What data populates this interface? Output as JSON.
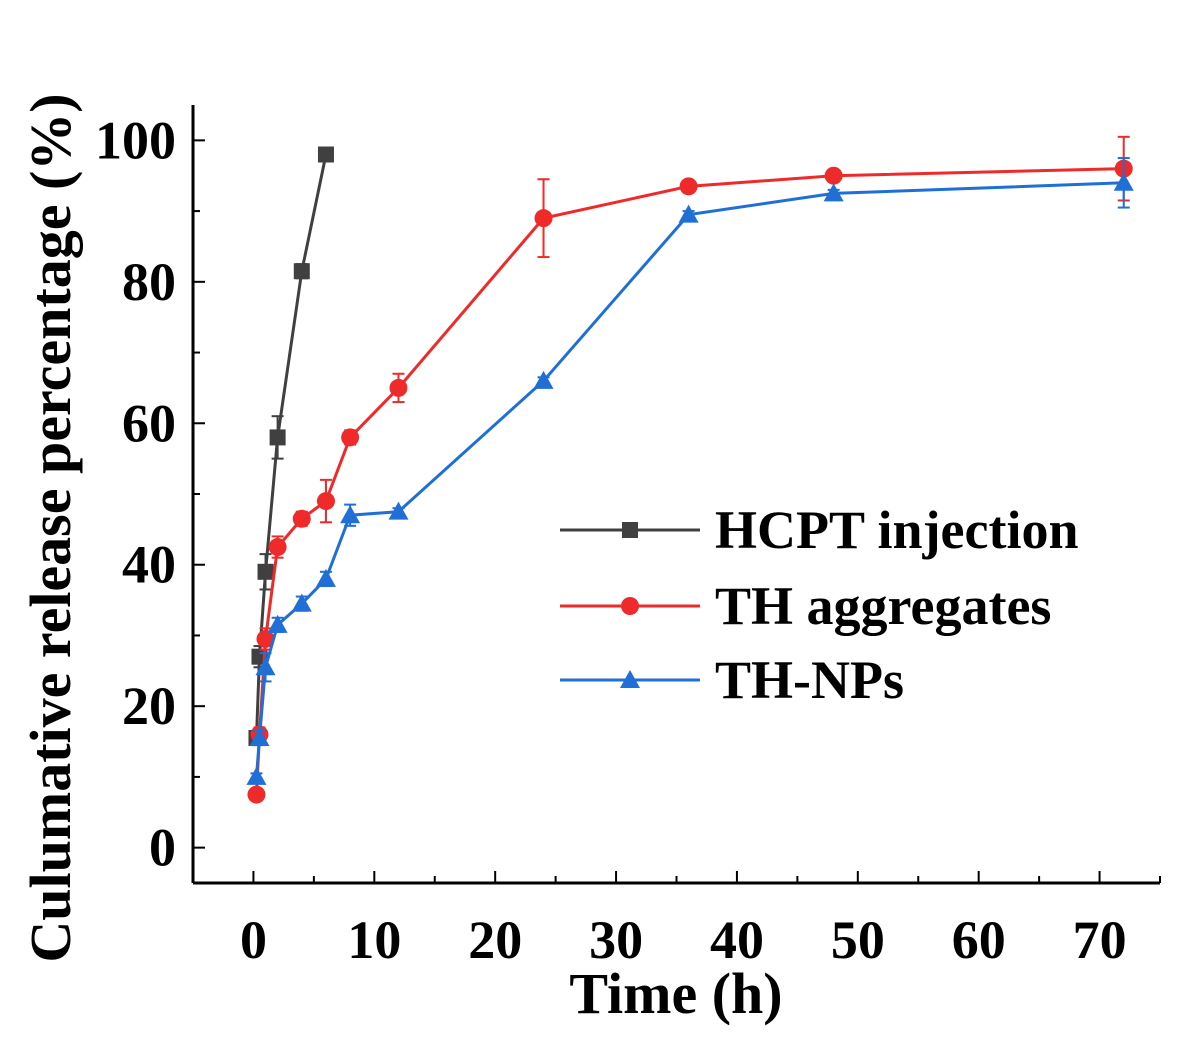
{
  "chart_data": {
    "type": "line",
    "title": "",
    "xlabel": "Time (h)",
    "ylabel": "Culumative release percentage (%)",
    "xlim": [
      -5,
      75
    ],
    "ylim": [
      -5,
      105
    ],
    "xticks": [
      0,
      10,
      20,
      30,
      40,
      50,
      60,
      70
    ],
    "yticks": [
      0,
      20,
      40,
      60,
      80,
      100
    ],
    "legend_position": "center-right",
    "grid": false,
    "series": [
      {
        "name": "HCPT injection",
        "color": "#404040",
        "marker": "square",
        "x": [
          0.25,
          0.5,
          1,
          2,
          4,
          6
        ],
        "y": [
          15.5,
          27,
          39,
          58,
          81.5,
          98
        ],
        "err": [
          1,
          1.5,
          2.5,
          3,
          1,
          0.5
        ]
      },
      {
        "name": "TH aggregates",
        "color": "#ee2a2a",
        "marker": "circle",
        "x": [
          0.25,
          0.5,
          1,
          2,
          4,
          6,
          8,
          12,
          24,
          36,
          48,
          72
        ],
        "y": [
          7.5,
          16,
          29.5,
          42.5,
          46.5,
          49,
          58,
          65,
          89,
          93.5,
          95,
          96
        ],
        "err": [
          0.5,
          1,
          1.5,
          1.5,
          1,
          3,
          1,
          2,
          5.5,
          0.5,
          0.5,
          4.5
        ]
      },
      {
        "name": "TH-NPs",
        "color": "#1f6fd6",
        "marker": "triangle",
        "x": [
          0.25,
          0.5,
          1,
          2,
          4,
          6,
          8,
          12,
          24,
          36,
          48,
          72
        ],
        "y": [
          10,
          15.5,
          25.5,
          31.5,
          34.5,
          38,
          47,
          47.5,
          66,
          89.5,
          92.5,
          94
        ],
        "err": [
          0.5,
          1,
          2,
          1,
          1,
          1,
          1.5,
          0.5,
          0.5,
          0.5,
          0.5,
          3.5
        ]
      }
    ]
  }
}
